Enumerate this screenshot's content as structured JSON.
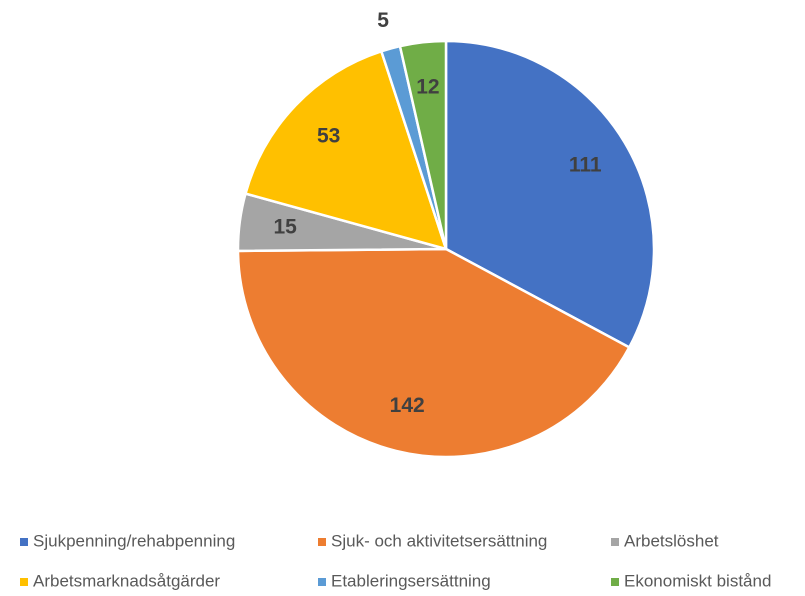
{
  "chart_data": {
    "type": "pie",
    "categories": [
      "Sjukpenning/rehabpenning",
      "Sjuk- och aktivitetsersättning",
      "Arbetslöshet",
      "Arbetsmarknadsåtgärder",
      "Etableringsersättning",
      "Ekonomiskt bistånd"
    ],
    "values": [
      111,
      142,
      15,
      53,
      5,
      12
    ],
    "colors": [
      "#4472c4",
      "#ed7d31",
      "#a5a5a5",
      "#ffc000",
      "#5b9bd5",
      "#70ad47"
    ],
    "legend": "bottom"
  }
}
